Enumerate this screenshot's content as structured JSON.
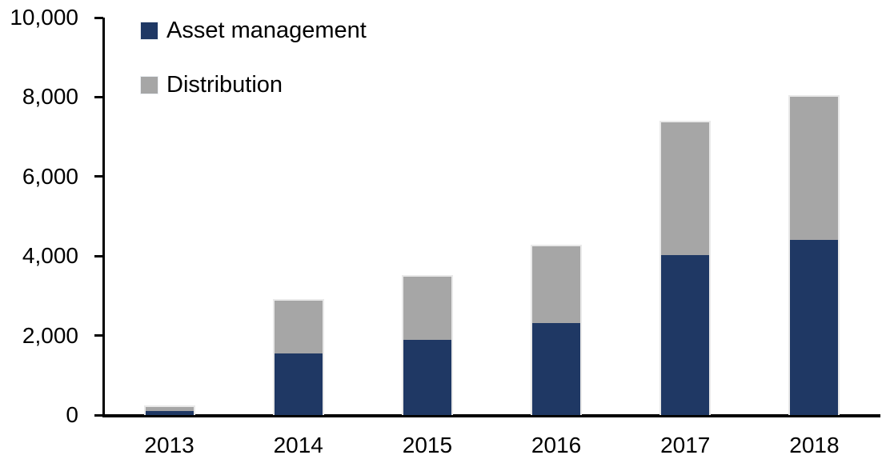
{
  "chart_data": {
    "type": "bar",
    "stacked": true,
    "title": "",
    "xlabel": "",
    "ylabel": "",
    "categories": [
      "2013",
      "2014",
      "2015",
      "2016",
      "2017",
      "2018"
    ],
    "series": [
      {
        "name": "Asset management",
        "color": "#1F3864",
        "values": [
          100,
          1550,
          1900,
          2310,
          4030,
          4410
        ]
      },
      {
        "name": "Distribution",
        "color": "#A6A6A6",
        "values": [
          100,
          1320,
          1590,
          1940,
          3340,
          3590
        ]
      }
    ],
    "totals": [
      200,
      2870,
      3490,
      4250,
      7370,
      8000
    ],
    "ylim": [
      0,
      10000
    ],
    "ytick_step": 2000,
    "ytick_values": [
      0,
      2000,
      4000,
      6000,
      8000,
      10000
    ],
    "ytick_labels": [
      "0",
      "2,000",
      "4,000",
      "6,000",
      "8,000",
      "10,000"
    ],
    "grid": false,
    "legend_position": "top-left"
  },
  "colors": {
    "axis": "#000000",
    "bar_border": "#e9e9e9",
    "background": "#ffffff"
  }
}
